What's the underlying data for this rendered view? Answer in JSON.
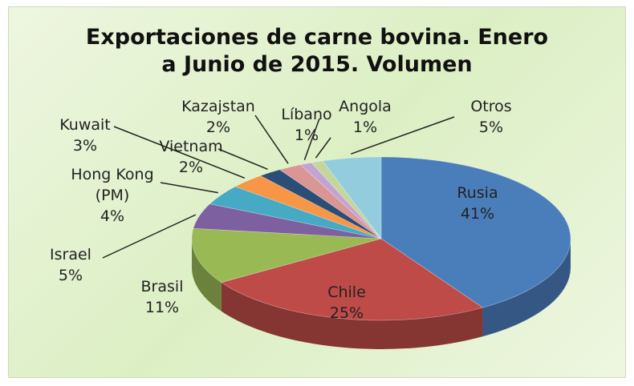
{
  "chart_data": {
    "type": "pie",
    "title": "Exportaciones de carne bovina. Enero a Junio de 2015. Volumen",
    "categories": [
      "Rusia",
      "Chile",
      "Brasil",
      "Israel",
      "Hong Kong (PM)",
      "Kuwait",
      "Vietnam",
      "Kazajstan",
      "Líbano",
      "Angola",
      "Otros"
    ],
    "values": [
      41,
      25,
      11,
      5,
      4,
      3,
      2,
      2,
      1,
      1,
      5
    ],
    "value_labels": [
      "41%",
      "25%",
      "11%",
      "5%",
      "4%",
      "3%",
      "2%",
      "2%",
      "1%",
      "1%",
      "5%"
    ],
    "colors": [
      "#4a7ebb",
      "#be4b48",
      "#98b954",
      "#7d60a0",
      "#46aac5",
      "#f79646",
      "#2c4d75",
      "#d99694",
      "#c3a3d4",
      "#c3d69b",
      "#93cddd"
    ]
  }
}
